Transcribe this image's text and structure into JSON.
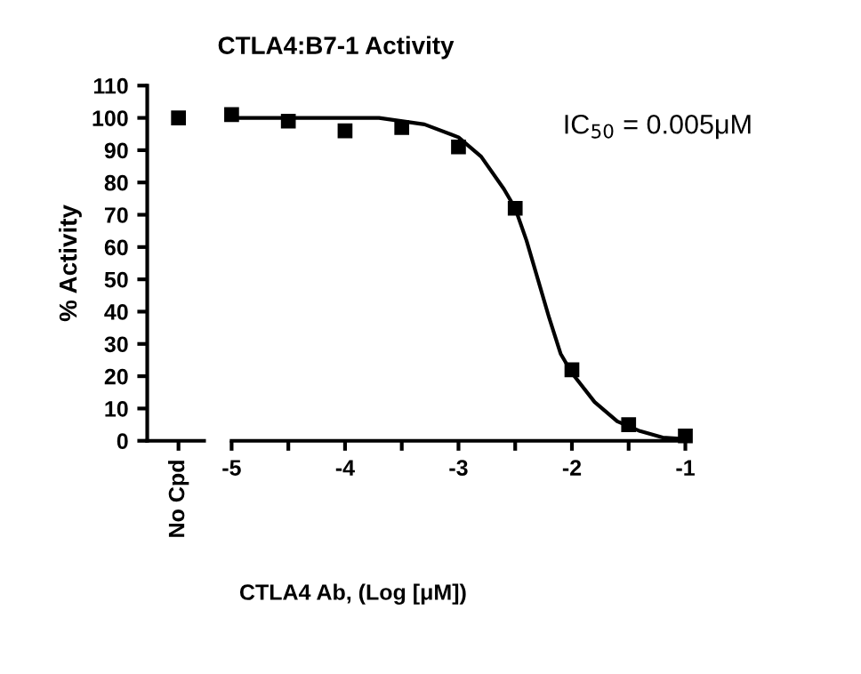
{
  "chart_data": [
    {
      "type": "scatter",
      "title": "CTLA4:B7-1 Activity",
      "ylabel": "% Activity",
      "categories": [
        "No Cpd"
      ],
      "series": [
        {
          "color": "#000000",
          "values": [
            100
          ]
        }
      ],
      "ylim": [
        0,
        110
      ],
      "yticks": [
        0,
        10,
        20,
        30,
        40,
        50,
        60,
        70,
        80,
        90,
        100,
        110
      ],
      "marker": "square",
      "grid": false,
      "legend": false
    },
    {
      "type": "scatter",
      "xlabel": "CTLA4 Ab, (Log [μM])",
      "annotations": [
        "IC$_{50}$ = 0.005μM"
      ],
      "series": [
        {
          "type": "scatter",
          "marker": "square",
          "color": "#000000",
          "x": [
            -5,
            -4.5,
            -4,
            -3.5,
            -3,
            -2.5,
            -2,
            -1.5,
            -1
          ],
          "values": [
            101,
            99,
            96,
            97,
            91,
            72,
            22,
            5,
            1.5
          ]
        },
        {
          "type": "line",
          "color": "#000000",
          "x": [
            -5,
            -4.5,
            -4,
            -3.7,
            -3.3,
            -3,
            -2.8,
            -2.6,
            -2.5,
            -2.4,
            -2.3,
            -2.2,
            -2.1,
            -2,
            -1.8,
            -1.6,
            -1.4,
            -1.2,
            -1
          ],
          "values": [
            100,
            100,
            100,
            100,
            98,
            94,
            88,
            78,
            72,
            62,
            50,
            38,
            27,
            21,
            12,
            6,
            3,
            1,
            0.5
          ]
        }
      ],
      "xlim": [
        -5,
        -1
      ],
      "xticks": [
        -5,
        {
          "value": -4.5,
          "label": null
        },
        -4,
        {
          "value": -3.5,
          "label": null
        },
        -3,
        {
          "value": -2.5,
          "label": null
        },
        -2,
        {
          "value": -1.5,
          "label": null
        },
        -1
      ],
      "ylim": [
        0,
        110
      ],
      "tick_labels": "x",
      "line_style": "solid",
      "grid": false,
      "legend": false
    }
  ]
}
